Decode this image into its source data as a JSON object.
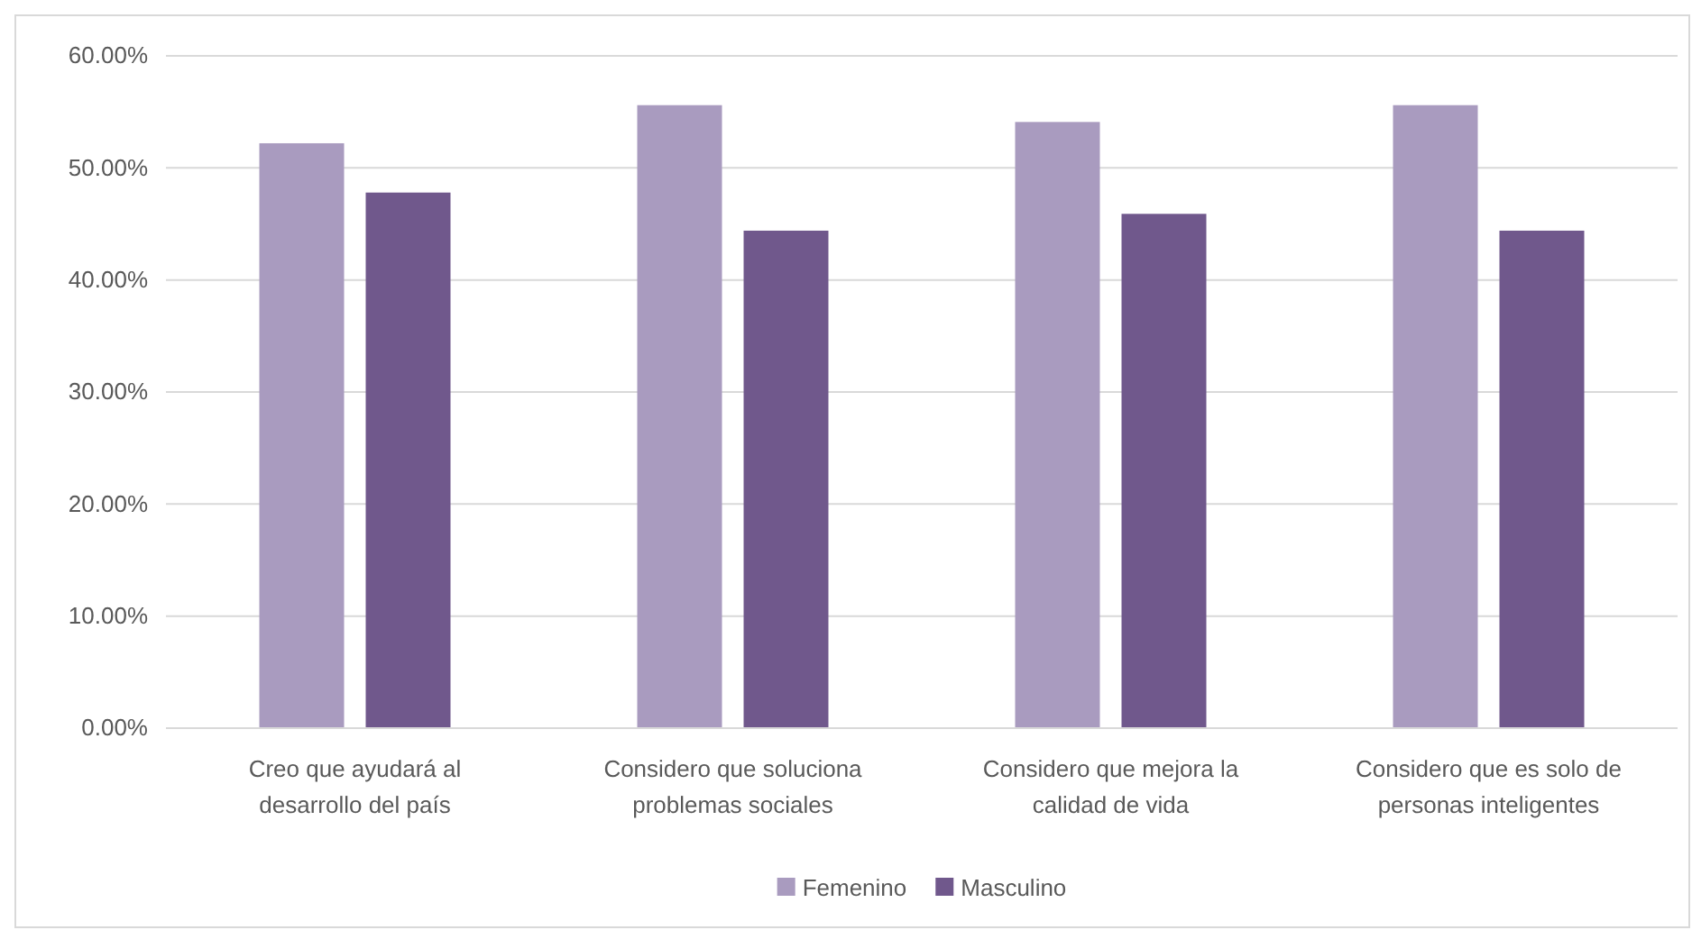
{
  "chart_data": {
    "type": "bar",
    "categories": [
      "Creo que ayudará al desarrollo del país",
      "Considero que soluciona problemas sociales",
      "Considero que mejora la calidad de vida",
      "Considero que es solo de personas inteligentes"
    ],
    "series": [
      {
        "name": "Femenino",
        "color": "#a99bbf",
        "values": [
          52.2,
          55.6,
          54.1,
          55.6
        ]
      },
      {
        "name": "Masculino",
        "color": "#70588c",
        "values": [
          47.8,
          44.4,
          45.9,
          44.4
        ]
      }
    ],
    "ylim": [
      0,
      60
    ],
    "yticks": [
      {
        "value": 0,
        "label": "0.00%"
      },
      {
        "value": 10,
        "label": "10.00%"
      },
      {
        "value": 20,
        "label": "20.00%"
      },
      {
        "value": 30,
        "label": "30.00%"
      },
      {
        "value": 40,
        "label": "40.00%"
      },
      {
        "value": 50,
        "label": "50.00%"
      },
      {
        "value": 60,
        "label": "60.00%"
      }
    ],
    "grid": "y",
    "legend": "bottom"
  }
}
